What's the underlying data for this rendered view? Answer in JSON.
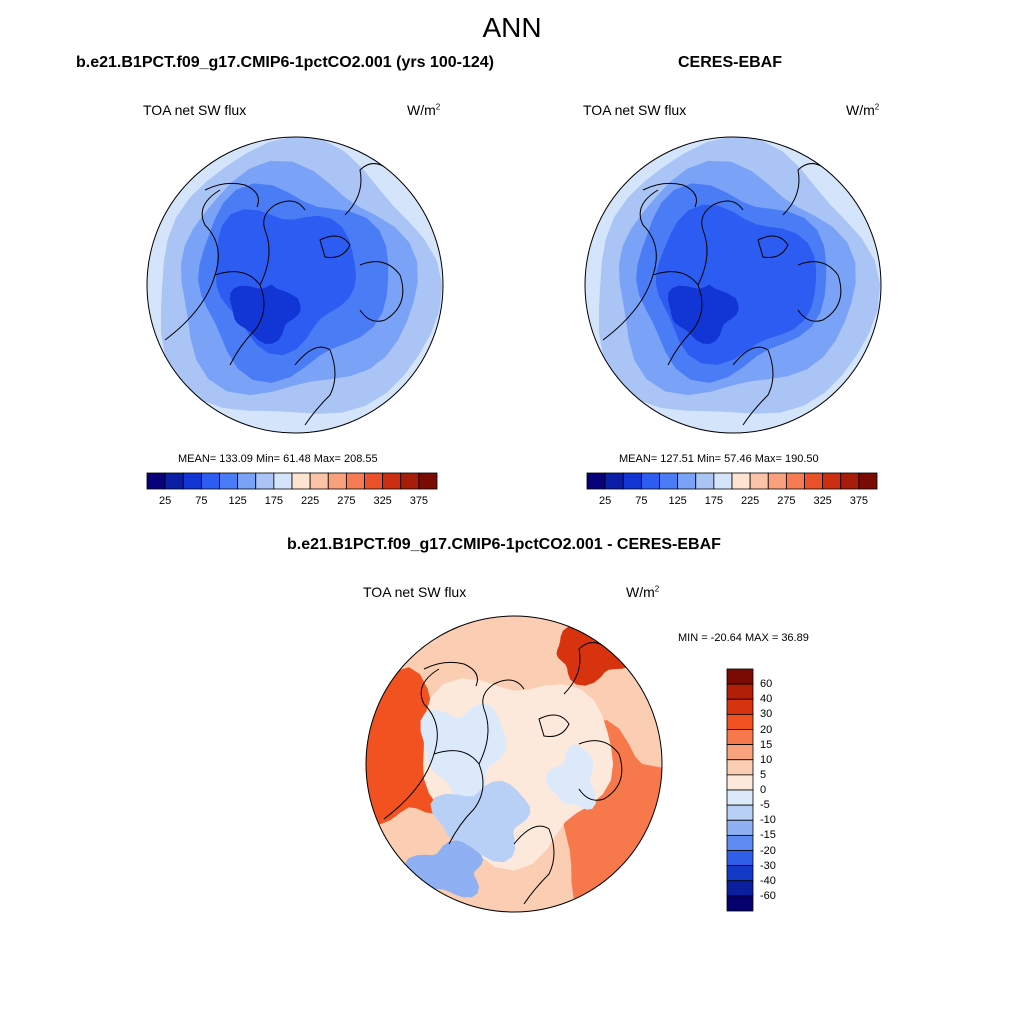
{
  "title": "ANN",
  "panels": [
    {
      "title": "b.e21.B1PCT.f09_g17.CMIP6-1pctCO2.001 (yrs 100-124)",
      "left_label": "TOA net SW flux",
      "units_base": "W/m",
      "units_exp": "2",
      "stats": "MEAN= 133.09  Min=  61.48  Max= 208.55",
      "colorbar": {
        "tick_labels": [
          "25",
          "75",
          "125",
          "175",
          "225",
          "275",
          "325",
          "375"
        ],
        "colors": [
          "#08007a",
          "#0b1fa6",
          "#1236d6",
          "#2c5cf2",
          "#4a7cf6",
          "#7aa2f6",
          "#a9c4f5",
          "#d4e4fb",
          "#fde3d2",
          "#fbc4a8",
          "#f9a07c",
          "#f57b52",
          "#ea5229",
          "#cc2e12",
          "#a61e0a",
          "#7a0b04"
        ]
      }
    },
    {
      "title": "CERES-EBAF",
      "left_label": "TOA net SW flux",
      "units_base": "W/m",
      "units_exp": "2",
      "stats": "MEAN= 127.51  Min=  57.46  Max= 190.50",
      "colorbar": {
        "tick_labels": [
          "25",
          "75",
          "125",
          "175",
          "225",
          "275",
          "325",
          "375"
        ],
        "colors": [
          "#08007a",
          "#0b1fa6",
          "#1236d6",
          "#2c5cf2",
          "#4a7cf6",
          "#7aa2f6",
          "#a9c4f5",
          "#d4e4fb",
          "#fde3d2",
          "#fbc4a8",
          "#f9a07c",
          "#f57b52",
          "#ea5229",
          "#cc2e12",
          "#a61e0a",
          "#7a0b04"
        ]
      }
    },
    {
      "title": "b.e21.B1PCT.f09_g17.CMIP6-1pctCO2.001 - CERES-EBAF",
      "left_label": "TOA net SW flux",
      "units_base": "W/m",
      "units_exp": "2",
      "stats": "MIN = -20.64 MAX =  36.89",
      "colorbar": {
        "tick_labels": [
          "60",
          "40",
          "30",
          "20",
          "15",
          "10",
          "5",
          "0",
          "-5",
          "-10",
          "-15",
          "-20",
          "-30",
          "-40",
          "-60"
        ],
        "colors": [
          "#7a0b04",
          "#b21d08",
          "#d8330f",
          "#f2521f",
          "#f7784a",
          "#f9a27e",
          "#fbcdb3",
          "#fde9dc",
          "#dce9fb",
          "#b8cff6",
          "#8fb0f3",
          "#5e8bf1",
          "#2f5fe8",
          "#1239c8",
          "#0a1e9e",
          "#050070"
        ]
      }
    }
  ]
}
